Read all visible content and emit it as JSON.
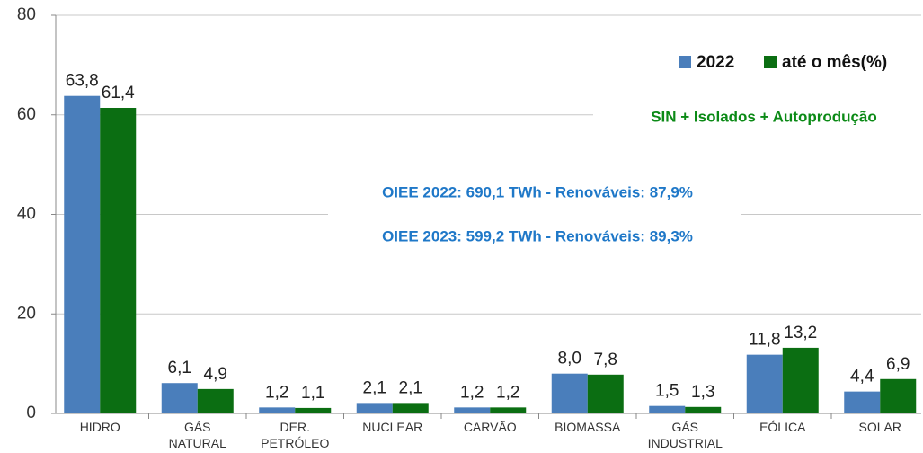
{
  "chart_data": {
    "type": "bar",
    "categories": [
      "HIDRO",
      "GÁS NATURAL",
      "DER. PETRÓLEO",
      "NUCLEAR",
      "CARVÃO",
      "BIOMASSA",
      "GÁS INDUSTRIAL",
      "EÓLICA",
      "SOLAR"
    ],
    "series": [
      {
        "name": "2022",
        "color": "#4a7ebb",
        "values": [
          63.8,
          6.1,
          1.2,
          2.1,
          1.2,
          8.0,
          1.5,
          11.8,
          4.4
        ],
        "value_labels": [
          "63,8",
          "6,1",
          "1,2",
          "2,1",
          "1,2",
          "8,0",
          "1,5",
          "11,8",
          "4,4"
        ]
      },
      {
        "name": "até o mês(%)",
        "color": "#0b6e12",
        "values": [
          61.4,
          4.9,
          1.1,
          2.1,
          1.2,
          7.8,
          1.3,
          13.2,
          6.9
        ],
        "value_labels": [
          "61,4",
          "4,9",
          "1,1",
          "2,1",
          "1,2",
          "7,8",
          "1,3",
          "13,2",
          "6,9"
        ]
      }
    ],
    "ylim": [
      0,
      80
    ],
    "yticks": [
      0,
      20,
      40,
      60,
      80
    ],
    "grid": true,
    "legend": "top-right",
    "annotations": [
      "SIN + Isolados + Autoprodução",
      "OIEE 2022: 690,1 TWh - Renováveis: 87,9%",
      "OIEE 2023: 599,2 TWh - Renováveis: 89,3%"
    ]
  }
}
